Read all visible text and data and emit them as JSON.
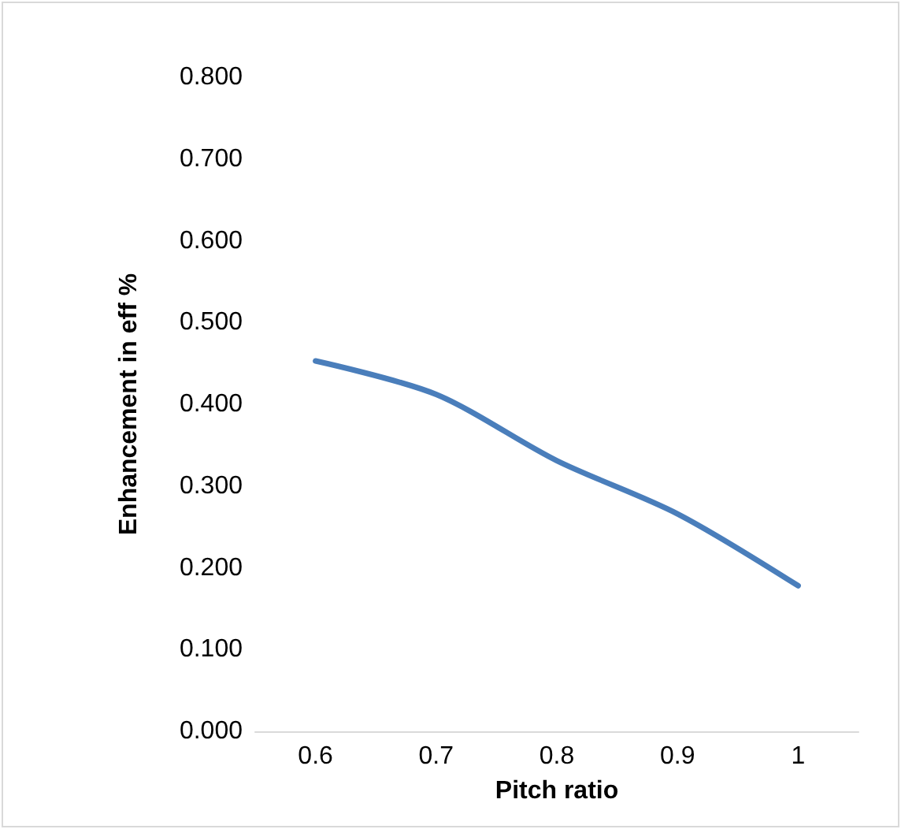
{
  "chart_data": {
    "type": "line",
    "xlabel": "Pitch ratio",
    "ylabel": "Enhancement in eff %",
    "categories": [
      "0.6",
      "0.7",
      "0.8",
      "0.9",
      "1"
    ],
    "series": [
      {
        "color": "#4a7ebb",
        "values": [
          0.453,
          0.412,
          0.331,
          0.266,
          0.178
        ]
      }
    ],
    "ylim": [
      0,
      0.8
    ],
    "yticks": [
      {
        "value": 0,
        "label": "0.000"
      },
      {
        "value": 0.1,
        "label": "0.100"
      },
      {
        "value": 0.2,
        "label": "0.200"
      },
      {
        "value": 0.3,
        "label": "0.300"
      },
      {
        "value": 0.4,
        "label": "0.400"
      },
      {
        "value": 0.5,
        "label": "0.500"
      },
      {
        "value": 0.6,
        "label": "0.600"
      },
      {
        "value": 0.7,
        "label": "0.700"
      },
      {
        "value": 0.8,
        "label": "0.800"
      }
    ],
    "marker": "none",
    "line_style": "solid"
  }
}
